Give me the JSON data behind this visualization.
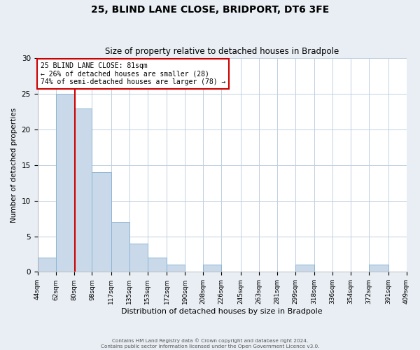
{
  "title": "25, BLIND LANE CLOSE, BRIDPORT, DT6 3FE",
  "subtitle": "Size of property relative to detached houses in Bradpole",
  "xlabel": "Distribution of detached houses by size in Bradpole",
  "ylabel": "Number of detached properties",
  "bin_edges": [
    44,
    62,
    80,
    98,
    117,
    135,
    153,
    172,
    190,
    208,
    226,
    245,
    263,
    281,
    299,
    318,
    336,
    354,
    372,
    391,
    409
  ],
  "bin_labels": [
    "44sqm",
    "62sqm",
    "80sqm",
    "98sqm",
    "117sqm",
    "135sqm",
    "153sqm",
    "172sqm",
    "190sqm",
    "208sqm",
    "226sqm",
    "245sqm",
    "263sqm",
    "281sqm",
    "299sqm",
    "318sqm",
    "336sqm",
    "354sqm",
    "372sqm",
    "391sqm",
    "409sqm"
  ],
  "counts": [
    2,
    25,
    23,
    14,
    7,
    4,
    2,
    1,
    0,
    1,
    0,
    0,
    0,
    0,
    1,
    0,
    0,
    0,
    1,
    0
  ],
  "bar_color": "#c9d9e9",
  "bar_edge_color": "#8ab4d4",
  "vline_x": 81,
  "vline_color": "#cc0000",
  "ylim": [
    0,
    30
  ],
  "yticks": [
    0,
    5,
    10,
    15,
    20,
    25,
    30
  ],
  "annotation_text": "25 BLIND LANE CLOSE: 81sqm\n← 26% of detached houses are smaller (28)\n74% of semi-detached houses are larger (78) →",
  "annotation_box_color": "#ffffff",
  "annotation_box_edge_color": "#cc0000",
  "footer_line1": "Contains HM Land Registry data © Crown copyright and database right 2024.",
  "footer_line2": "Contains public sector information licensed under the Open Government Licence v3.0.",
  "bg_color": "#e8eef4",
  "plot_bg_color": "#ffffff",
  "grid_color": "#c0d0e0"
}
